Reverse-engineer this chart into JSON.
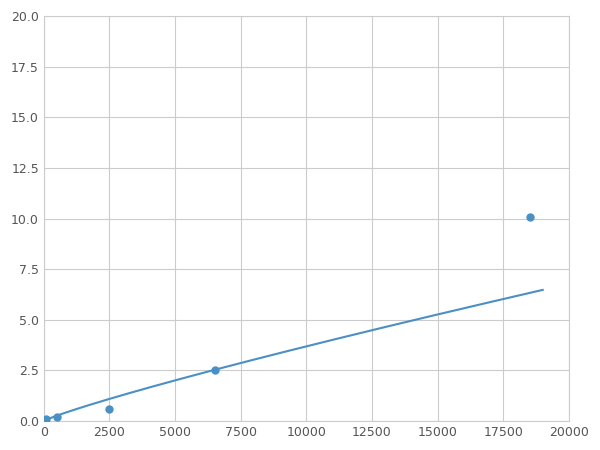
{
  "x": [
    100,
    500,
    2500,
    6500,
    18500
  ],
  "y": [
    0.1,
    0.2,
    0.6,
    2.5,
    10.1
  ],
  "line_color": "#4a90c4",
  "marker_color": "#4a90c4",
  "marker_size": 5,
  "xlim": [
    0,
    20000
  ],
  "ylim": [
    0,
    20.0
  ],
  "xticks": [
    0,
    2500,
    5000,
    7500,
    10000,
    12500,
    15000,
    17500,
    20000
  ],
  "yticks": [
    0.0,
    2.5,
    5.0,
    7.5,
    10.0,
    12.5,
    15.0,
    17.5,
    20.0
  ],
  "grid": true,
  "background_color": "#ffffff",
  "figsize": [
    6.0,
    4.5
  ],
  "dpi": 100
}
